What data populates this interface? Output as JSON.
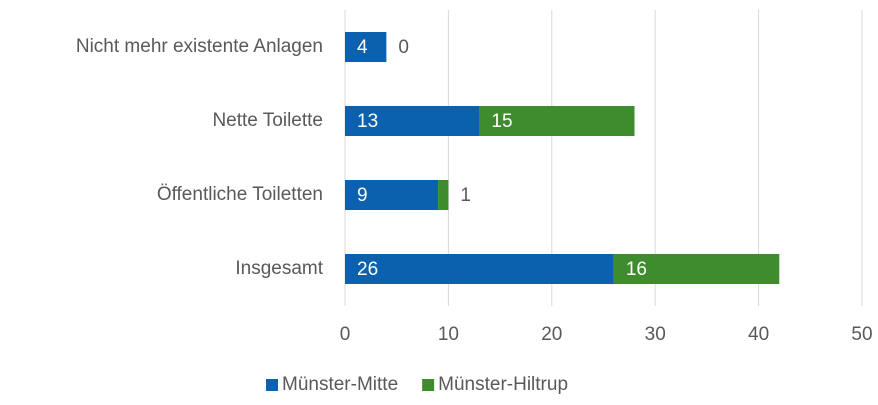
{
  "chart_data": {
    "type": "bar",
    "stacked": true,
    "horizontal": true,
    "categories": [
      "Nicht mehr existente Anlagen",
      "Nette Toilette",
      "Öffentliche Toiletten",
      "Insgesamt"
    ],
    "series": [
      {
        "name": "Münster-Mitte",
        "color": "#0b61ae",
        "values": [
          4,
          13,
          9,
          26
        ]
      },
      {
        "name": "Münster-Hiltrup",
        "color": "#3f8c2f",
        "values": [
          0,
          15,
          1,
          16
        ]
      }
    ],
    "xlim": [
      0,
      50
    ],
    "xticks": [
      0,
      10,
      20,
      30,
      40,
      50
    ],
    "grid": true,
    "legend": "bottom"
  }
}
